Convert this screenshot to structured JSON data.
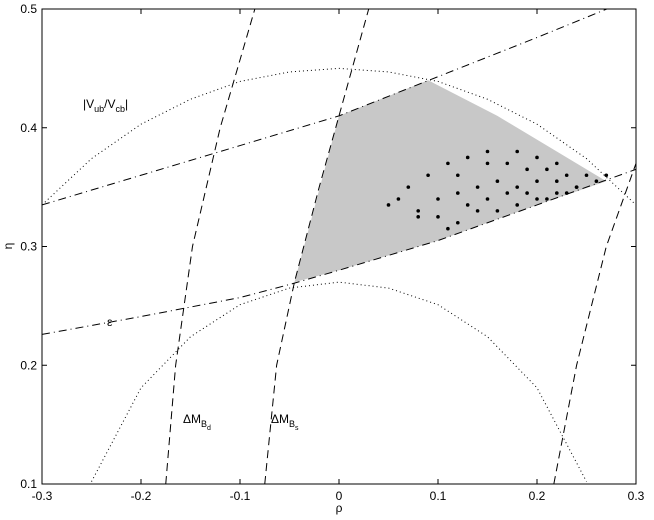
{
  "chart_data": {
    "type": "line",
    "xlabel": "ρ",
    "ylabel": "η",
    "xlim": [
      -0.3,
      0.3
    ],
    "ylim": [
      0.1,
      0.5
    ],
    "xticks": [
      -0.3,
      -0.2,
      -0.1,
      0,
      0.1,
      0.2,
      0.3
    ],
    "yticks": [
      0.1,
      0.2,
      0.3,
      0.4,
      0.5
    ],
    "annotations": [
      {
        "text": "|V",
        "sub": {
          "text": "ub"
        },
        "next": {
          "text": "/V",
          "sub": {
            "text": "cb"
          },
          "next": {
            "text": "|"
          }
        }
      },
      {
        "text": "ε"
      },
      {
        "text": "ΔM",
        "sub": {
          "text": "B",
          "sub": {
            "text": "d"
          }
        }
      },
      {
        "text": "ΔM",
        "sub": {
          "text": "B",
          "sub": {
            "text": "s"
          }
        }
      }
    ],
    "series": [
      {
        "style": "fill",
        "color": "#c8c8c8",
        "x": [
          -0.045,
          0,
          0.09,
          0.16,
          0.22,
          0.27,
          0.2,
          0.1,
          0
        ],
        "values": [
          0.27,
          0.41,
          0.44,
          0.41,
          0.38,
          0.355,
          0.335,
          0.305,
          0.28
        ]
      },
      {
        "style": "dotted",
        "color": "#000000",
        "x": [
          -0.3,
          -0.25,
          -0.2,
          -0.15,
          -0.1,
          -0.05,
          0,
          0.05,
          0.1,
          0.15,
          0.2,
          0.25,
          0.3
        ],
        "values": [
          0.335,
          0.374,
          0.403,
          0.424,
          0.439,
          0.447,
          0.45,
          0.447,
          0.439,
          0.424,
          0.403,
          0.374,
          0.335
        ]
      },
      {
        "style": "dotted",
        "color": "#000000",
        "x": [
          -0.25,
          -0.2,
          -0.15,
          -0.1,
          -0.05,
          0,
          0.05,
          0.1,
          0.15,
          0.2,
          0.25
        ],
        "values": [
          0.102,
          0.181,
          0.224,
          0.251,
          0.265,
          0.27,
          0.265,
          0.251,
          0.224,
          0.181,
          0.102
        ]
      },
      {
        "style": "dash-dot",
        "color": "#000000",
        "x": [
          -0.3,
          -0.2,
          -0.1,
          0,
          0.1,
          0.2,
          0.3
        ],
        "values": [
          0.335,
          0.36,
          0.385,
          0.41,
          0.443,
          0.476,
          0.51
        ]
      },
      {
        "style": "dash-dot",
        "color": "#000000",
        "x": [
          -0.3,
          -0.2,
          -0.1,
          -0.05,
          0,
          0.1,
          0.2,
          0.3
        ],
        "values": [
          0.226,
          0.241,
          0.257,
          0.268,
          0.28,
          0.305,
          0.335,
          0.365
        ]
      },
      {
        "style": "dashed",
        "color": "#000000",
        "x": [
          -0.175,
          -0.165,
          -0.148,
          -0.12,
          -0.085
        ],
        "values": [
          0.1,
          0.2,
          0.3,
          0.4,
          0.5
        ]
      },
      {
        "style": "dashed",
        "color": "#000000",
        "x": [
          -0.075,
          -0.063,
          -0.045,
          -0.02,
          0,
          0.03
        ],
        "values": [
          0.1,
          0.2,
          0.27,
          0.35,
          0.41,
          0.5
        ]
      },
      {
        "style": "dashed",
        "color": "#000000",
        "x": [
          0.217,
          0.24,
          0.27,
          0.3
        ],
        "values": [
          0.1,
          0.2,
          0.3,
          0.37
        ]
      },
      {
        "style": "points",
        "color": "#000000",
        "x": [
          0.06,
          0.08,
          0.1,
          0.12,
          0.14,
          0.16,
          0.18,
          0.2,
          0.22,
          0.24,
          0.26,
          0.07,
          0.09,
          0.11,
          0.13,
          0.15,
          0.17,
          0.19,
          0.21,
          0.23,
          0.25,
          0.27,
          0.1,
          0.12,
          0.14,
          0.16,
          0.18,
          0.2,
          0.22,
          0.24,
          0.08,
          0.11,
          0.13,
          0.15,
          0.17,
          0.19,
          0.21,
          0.23,
          0.05,
          0.12,
          0.15,
          0.18,
          0.2,
          0.22
        ],
        "values": [
          0.34,
          0.33,
          0.325,
          0.32,
          0.33,
          0.33,
          0.335,
          0.34,
          0.345,
          0.35,
          0.355,
          0.35,
          0.36,
          0.37,
          0.375,
          0.37,
          0.37,
          0.365,
          0.365,
          0.36,
          0.36,
          0.36,
          0.34,
          0.345,
          0.35,
          0.355,
          0.35,
          0.355,
          0.355,
          0.35,
          0.325,
          0.315,
          0.335,
          0.34,
          0.345,
          0.345,
          0.34,
          0.345,
          0.335,
          0.36,
          0.38,
          0.38,
          0.375,
          0.37
        ]
      }
    ]
  }
}
